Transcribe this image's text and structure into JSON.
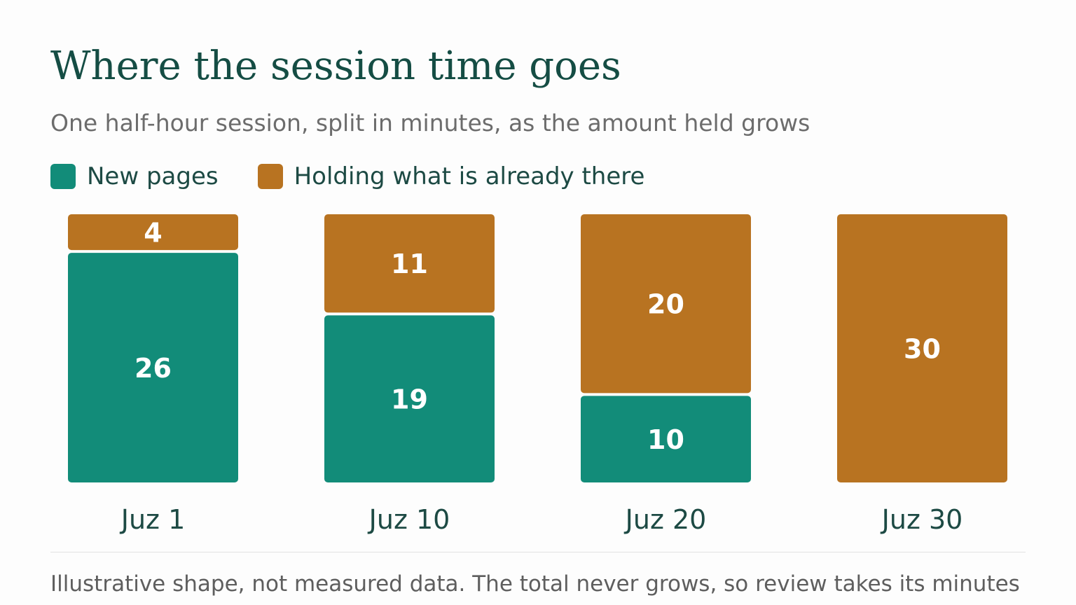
{
  "chart_data": {
    "type": "bar",
    "stacked": true,
    "title": "Where the session time goes",
    "subtitle": "One half-hour session, split in minutes, as the amount held grows",
    "categories": [
      "Juz 1",
      "Juz 10",
      "Juz 20",
      "Juz 30"
    ],
    "series": [
      {
        "name": "New pages",
        "color": "#128c79",
        "values": [
          26,
          19,
          10,
          0
        ]
      },
      {
        "name": "Holding what is already there",
        "color": "#b87321",
        "values": [
          4,
          11,
          20,
          30
        ]
      }
    ],
    "ylim": [
      0,
      30
    ],
    "legend_position": "top-left",
    "grid": false,
    "footnote": "Illustrative shape, not measured data. The total never grows, so review takes its minutes"
  }
}
